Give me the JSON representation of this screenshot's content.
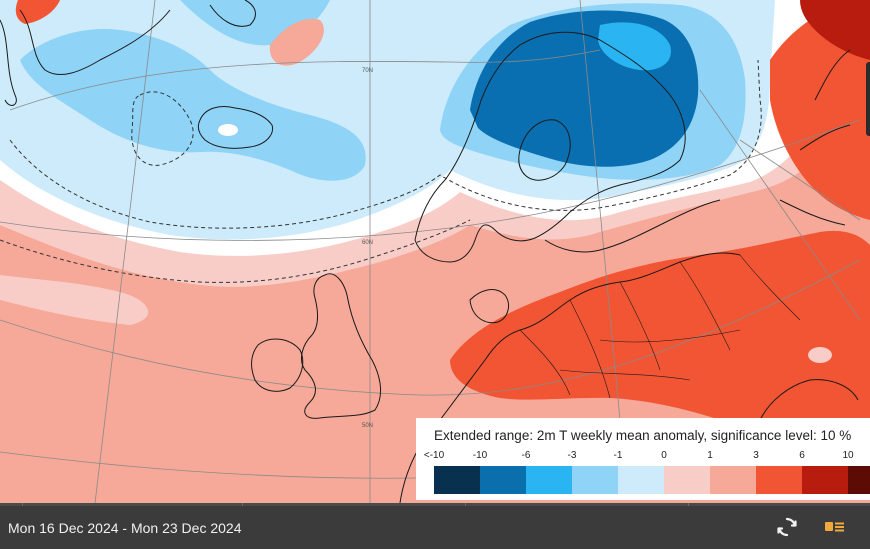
{
  "map": {
    "legend": {
      "title": "Extended range: 2m T weekly mean anomaly, significance level: 10 %",
      "ticks": [
        "<-10",
        "-10",
        "-6",
        "-3",
        "-1",
        "0",
        "1",
        "3",
        "6",
        "10"
      ],
      "colors": [
        "#08304f",
        "#0b6fae",
        "#2ab4f2",
        "#8fd3f6",
        "#cdebfa",
        "#f9cdc7",
        "#f6a899",
        "#f25533",
        "#b81c0e",
        "#5c0b05"
      ]
    },
    "graticule_labels": [
      "50N",
      "60N",
      "70N"
    ],
    "colors": {
      "strong_cold": "#0a6fb0",
      "cold": "#8fd3f6",
      "cool": "#cdebfa",
      "neutral": "#ffffff",
      "mild": "#f9cdc7",
      "warm": "#f6a899",
      "hot": "#f25533",
      "very_hot": "#b81c0e"
    }
  },
  "timeline": {
    "date_range": "Mon 16 Dec 2024 - Mon 23 Dec 2024"
  },
  "controls": {
    "refresh_icon": "refresh-icon",
    "layers_icon": "layers-list-icon"
  }
}
